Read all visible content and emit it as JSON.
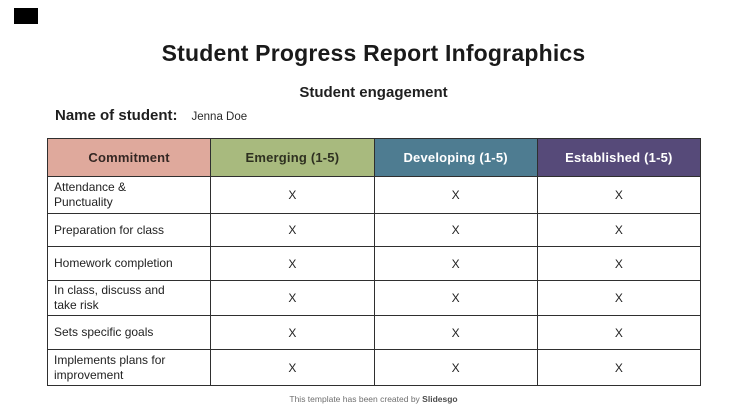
{
  "page": {
    "title": "Student Progress Report Infographics",
    "subtitle": "Student engagement",
    "name_label": "Name of student:",
    "name_value": "Jenna Doe",
    "footer_prefix": "This template has been created by ",
    "footer_brand": "Slidesgo"
  },
  "colors": {
    "border": "#2F2F2F",
    "corner_decoration": "#000000"
  },
  "table": {
    "headers": [
      {
        "label": "Commitment",
        "bg": "#DFA99C",
        "fg": "#342723"
      },
      {
        "label": "Emerging (1-5)",
        "bg": "#A8BA7E",
        "fg": "#2E3020"
      },
      {
        "label": "Developing (1-5)",
        "bg": "#4E7C91",
        "fg": "#FFFFFF"
      },
      {
        "label": "Established (1-5)",
        "bg": "#564A79",
        "fg": "#FFFFFF"
      }
    ],
    "rows": [
      {
        "label": "Attendance &\nPunctuality",
        "marks": [
          "X",
          "X",
          "X"
        ]
      },
      {
        "label": "Preparation for class",
        "marks": [
          "X",
          "X",
          "X"
        ]
      },
      {
        "label": "Homework completion",
        "marks": [
          "X",
          "X",
          "X"
        ]
      },
      {
        "label": "In class, discuss and\ntake risk",
        "marks": [
          "X",
          "X",
          "X"
        ]
      },
      {
        "label": "Sets specific goals",
        "marks": [
          "X",
          "X",
          "X"
        ]
      },
      {
        "label": "Implements plans for\nimprovement",
        "marks": [
          "X",
          "X",
          "X"
        ]
      }
    ]
  }
}
